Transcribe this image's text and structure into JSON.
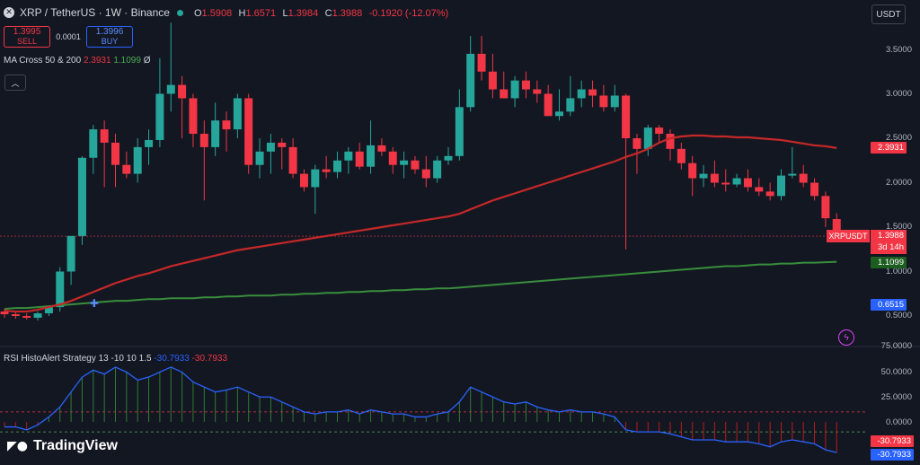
{
  "header": {
    "symbol_icon": "x-icon",
    "title": "XRP / TetherUS · 1W · Binance",
    "status_color": "#26a69a",
    "ohlc": [
      {
        "key": "O",
        "value": "1.5908"
      },
      {
        "key": "H",
        "value": "1.6571"
      },
      {
        "key": "L",
        "value": "1.3984"
      },
      {
        "key": "C",
        "value": "1.3988"
      }
    ],
    "change": "-0.1920 (-12.07%)"
  },
  "trade": {
    "sell_price": "1.3995",
    "sell_label": "SELL",
    "spread": "0.0001",
    "buy_price": "1.3996",
    "buy_label": "BUY"
  },
  "currency_button": "USDT",
  "indicator_ma": {
    "name": "MA Cross 50 & 200",
    "v1": "2.3931",
    "v2": "1.1099",
    "v3": "Ø"
  },
  "indicator_rsi": {
    "name": "RSI HistoAlert Strategy 13 -10 10 1.5",
    "v1": "-30.7933",
    "v2": "-30.7933"
  },
  "price_axis": {
    "ticks": [
      {
        "label": "3.5000",
        "value": 3.5
      },
      {
        "label": "3.0000",
        "value": 3.0
      },
      {
        "label": "2.5000",
        "value": 2.5
      },
      {
        "label": "2.0000",
        "value": 2.0
      },
      {
        "label": "1.5000",
        "value": 1.5
      },
      {
        "label": "1.0000",
        "value": 1.0
      },
      {
        "label": "0.5000",
        "value": 0.5
      }
    ],
    "ma50_tag": "2.3931",
    "ma200_tag": "1.1099",
    "low_tag": "0.6515",
    "symbol_tag": "XRPUSDT",
    "last_price": "1.3988",
    "countdown": "3d 14h"
  },
  "rsi_axis": {
    "ticks": [
      {
        "label": "75.0000",
        "value": 75
      },
      {
        "label": "50.0000",
        "value": 50
      },
      {
        "label": "25.0000",
        "value": 25
      },
      {
        "label": "0.0000",
        "value": 0
      }
    ],
    "tag1": "-30.7933",
    "tag2": "-30.7933"
  },
  "colors": {
    "up": "#26a69a",
    "down": "#f23645",
    "ma50": "#f23645",
    "ma200": "#2e7d32",
    "rsi": "#2962ff",
    "bg": "#131722"
  },
  "logo": {
    "text": "TradingView",
    "icon": "tradingview-logo-icon"
  },
  "chart_data": {
    "type": "candlestick",
    "ylim": [
      0.3,
      3.75
    ],
    "candles": [
      [
        0.55,
        0.58,
        0.48,
        0.52
      ],
      [
        0.52,
        0.56,
        0.47,
        0.5
      ],
      [
        0.5,
        0.53,
        0.46,
        0.48
      ],
      [
        0.48,
        0.55,
        0.45,
        0.53
      ],
      [
        0.53,
        0.62,
        0.5,
        0.6
      ],
      [
        0.6,
        1.05,
        0.55,
        1.0
      ],
      [
        1.0,
        1.4,
        0.85,
        1.4
      ],
      [
        1.4,
        2.3,
        1.3,
        2.28
      ],
      [
        2.28,
        2.65,
        2.1,
        2.6
      ],
      [
        2.6,
        2.7,
        1.95,
        2.45
      ],
      [
        2.45,
        2.55,
        1.95,
        2.2
      ],
      [
        2.2,
        2.35,
        2.05,
        2.1
      ],
      [
        2.1,
        2.5,
        2.0,
        2.4
      ],
      [
        2.4,
        2.6,
        2.2,
        2.48
      ],
      [
        2.48,
        3.4,
        2.4,
        3.0
      ],
      [
        3.0,
        3.8,
        2.8,
        3.1
      ],
      [
        3.1,
        3.2,
        2.5,
        2.95
      ],
      [
        2.95,
        3.0,
        2.4,
        2.55
      ],
      [
        2.55,
        2.7,
        1.8,
        2.4
      ],
      [
        2.4,
        2.9,
        2.3,
        2.7
      ],
      [
        2.7,
        2.8,
        2.35,
        2.6
      ],
      [
        2.6,
        3.0,
        2.5,
        2.95
      ],
      [
        2.95,
        3.0,
        2.1,
        2.2
      ],
      [
        2.2,
        2.5,
        2.05,
        2.35
      ],
      [
        2.35,
        2.55,
        2.1,
        2.45
      ],
      [
        2.45,
        2.5,
        2.15,
        2.4
      ],
      [
        2.4,
        2.5,
        2.05,
        2.1
      ],
      [
        2.1,
        2.15,
        1.9,
        1.95
      ],
      [
        1.95,
        2.2,
        1.65,
        2.15
      ],
      [
        2.15,
        2.3,
        2.05,
        2.12
      ],
      [
        2.12,
        2.35,
        2.05,
        2.25
      ],
      [
        2.25,
        2.4,
        2.1,
        2.35
      ],
      [
        2.35,
        2.45,
        2.15,
        2.18
      ],
      [
        2.18,
        2.7,
        2.1,
        2.42
      ],
      [
        2.42,
        2.5,
        2.3,
        2.35
      ],
      [
        2.35,
        2.4,
        2.1,
        2.2
      ],
      [
        2.2,
        2.35,
        2.05,
        2.25
      ],
      [
        2.25,
        2.3,
        2.1,
        2.15
      ],
      [
        2.15,
        2.3,
        1.95,
        2.05
      ],
      [
        2.05,
        2.3,
        2.0,
        2.25
      ],
      [
        2.25,
        2.4,
        2.2,
        2.3
      ],
      [
        2.3,
        3.05,
        2.25,
        2.85
      ],
      [
        2.85,
        3.65,
        2.8,
        3.45
      ],
      [
        3.45,
        3.65,
        3.15,
        3.25
      ],
      [
        3.25,
        3.45,
        2.95,
        3.05
      ],
      [
        3.05,
        3.25,
        2.95,
        2.95
      ],
      [
        2.95,
        3.2,
        2.85,
        3.15
      ],
      [
        3.15,
        3.25,
        2.95,
        3.05
      ],
      [
        3.05,
        3.15,
        2.9,
        3.0
      ],
      [
        3.0,
        3.1,
        2.75,
        2.75
      ],
      [
        2.75,
        3.05,
        2.7,
        2.8
      ],
      [
        2.8,
        3.2,
        2.75,
        2.95
      ],
      [
        2.95,
        3.15,
        2.85,
        3.05
      ],
      [
        3.05,
        3.15,
        2.85,
        2.98
      ],
      [
        2.98,
        3.1,
        2.8,
        2.85
      ],
      [
        2.85,
        3.1,
        2.8,
        2.98
      ],
      [
        2.98,
        3.0,
        1.25,
        2.5
      ],
      [
        2.5,
        2.55,
        2.1,
        2.38
      ],
      [
        2.38,
        2.65,
        2.3,
        2.62
      ],
      [
        2.62,
        2.65,
        2.45,
        2.55
      ],
      [
        2.55,
        2.6,
        2.25,
        2.38
      ],
      [
        2.38,
        2.45,
        2.15,
        2.22
      ],
      [
        2.22,
        2.3,
        1.85,
        2.05
      ],
      [
        2.05,
        2.2,
        1.95,
        2.1
      ],
      [
        2.1,
        2.25,
        1.95,
        2.0
      ],
      [
        2.0,
        2.15,
        1.9,
        1.98
      ],
      [
        1.98,
        2.1,
        1.95,
        2.05
      ],
      [
        2.05,
        2.15,
        1.9,
        1.95
      ],
      [
        1.95,
        2.05,
        1.85,
        1.9
      ],
      [
        1.9,
        2.0,
        1.8,
        1.85
      ],
      [
        1.85,
        2.15,
        1.8,
        2.08
      ],
      [
        2.08,
        2.4,
        2.05,
        2.1
      ],
      [
        2.1,
        2.2,
        1.95,
        2.0
      ],
      [
        2.0,
        2.05,
        1.8,
        1.85
      ],
      [
        1.85,
        1.9,
        1.5,
        1.6
      ],
      [
        1.5908,
        1.6571,
        1.3984,
        1.3988
      ]
    ],
    "ma50": [
      0.56,
      0.55,
      0.55,
      0.57,
      0.6,
      0.63,
      0.67,
      0.72,
      0.77,
      0.82,
      0.87,
      0.91,
      0.95,
      0.98,
      1.02,
      1.06,
      1.09,
      1.12,
      1.15,
      1.18,
      1.21,
      1.24,
      1.26,
      1.28,
      1.3,
      1.32,
      1.34,
      1.36,
      1.38,
      1.4,
      1.42,
      1.44,
      1.46,
      1.48,
      1.5,
      1.52,
      1.54,
      1.56,
      1.58,
      1.6,
      1.62,
      1.65,
      1.7,
      1.75,
      1.8,
      1.84,
      1.88,
      1.92,
      1.96,
      2.0,
      2.04,
      2.08,
      2.12,
      2.16,
      2.2,
      2.24,
      2.29,
      2.33,
      2.38,
      2.45,
      2.5,
      2.52,
      2.53,
      2.53,
      2.52,
      2.52,
      2.51,
      2.51,
      2.5,
      2.49,
      2.48,
      2.46,
      2.44,
      2.42,
      2.41,
      2.39
    ],
    "ma200": [
      0.58,
      0.59,
      0.59,
      0.6,
      0.61,
      0.62,
      0.63,
      0.64,
      0.65,
      0.66,
      0.67,
      0.67,
      0.68,
      0.69,
      0.69,
      0.7,
      0.7,
      0.7,
      0.71,
      0.71,
      0.72,
      0.72,
      0.73,
      0.73,
      0.73,
      0.74,
      0.74,
      0.75,
      0.75,
      0.76,
      0.76,
      0.77,
      0.77,
      0.78,
      0.78,
      0.79,
      0.79,
      0.8,
      0.8,
      0.81,
      0.81,
      0.82,
      0.83,
      0.84,
      0.85,
      0.86,
      0.87,
      0.88,
      0.89,
      0.9,
      0.91,
      0.92,
      0.93,
      0.94,
      0.95,
      0.96,
      0.97,
      0.98,
      0.99,
      1.0,
      1.01,
      1.02,
      1.03,
      1.04,
      1.05,
      1.06,
      1.06,
      1.07,
      1.08,
      1.08,
      1.09,
      1.09,
      1.1,
      1.1,
      1.105,
      1.1099
    ],
    "rsi": [
      -5,
      -5,
      -8,
      -3,
      5,
      15,
      30,
      45,
      52,
      48,
      55,
      50,
      42,
      45,
      50,
      55,
      50,
      40,
      35,
      30,
      32,
      35,
      30,
      25,
      25,
      20,
      15,
      10,
      8,
      10,
      10,
      12,
      8,
      12,
      10,
      8,
      8,
      5,
      5,
      8,
      10,
      20,
      35,
      30,
      25,
      20,
      18,
      20,
      15,
      12,
      10,
      12,
      10,
      10,
      8,
      5,
      -8,
      -10,
      -10,
      -10,
      -12,
      -15,
      -18,
      -18,
      -18,
      -20,
      -20,
      -20,
      -22,
      -25,
      -20,
      -18,
      -20,
      -22,
      -28,
      -30.79
    ],
    "rsi_ylim": [
      -45,
      85
    ],
    "rsi_levels": [
      10,
      -10
    ]
  }
}
